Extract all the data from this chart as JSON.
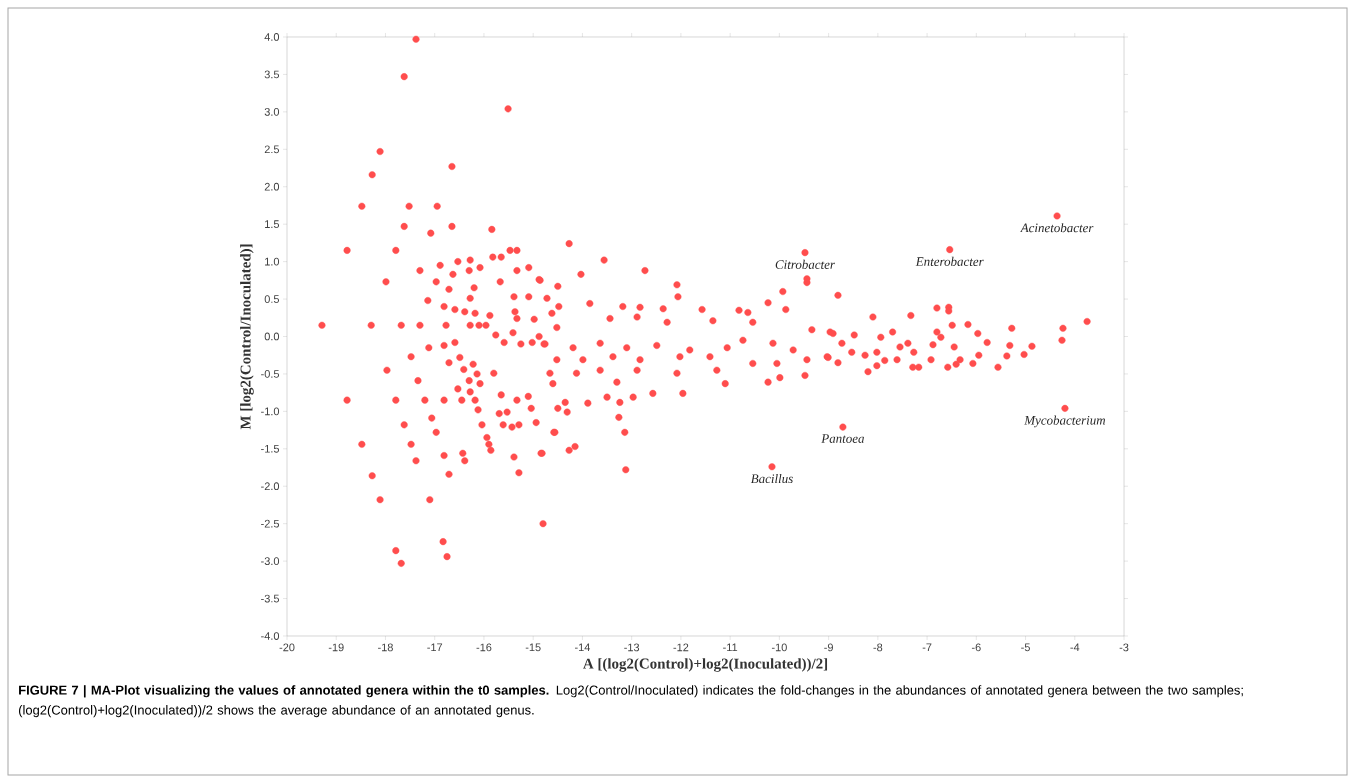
{
  "chart_data": {
    "type": "scatter",
    "xlabel": "A [(log2(Control)+log2(Inoculated))/2]",
    "ylabel": "M [log2(Control/Inoculated)]",
    "color": "#ff4d4d",
    "marker": "circle",
    "grid": false,
    "legend": false,
    "xlim": [
      -20,
      -3
    ],
    "ylim": [
      -4,
      4
    ],
    "xticks": [
      -20,
      -19,
      -18,
      -17,
      -16,
      -15,
      -14,
      -13,
      -12,
      -11,
      -10,
      -9,
      -8,
      -7,
      -6,
      -5,
      -4,
      -3
    ],
    "yticks": [
      {
        "value": 4,
        "label": "4.0"
      },
      {
        "value": 3.5,
        "label": "3.5"
      },
      {
        "value": 3,
        "label": "3.0"
      },
      {
        "value": 2.5,
        "label": "2.5"
      },
      {
        "value": 2,
        "label": "2.0"
      },
      {
        "value": 1.5,
        "label": "1.5"
      },
      {
        "value": 1,
        "label": "1.0"
      },
      {
        "value": 0.5,
        "label": "0.5"
      },
      {
        "value": 0,
        "label": "0.0"
      },
      {
        "value": -0.5,
        "label": "-0.5"
      },
      {
        "value": -1,
        "label": "-1.0"
      },
      {
        "value": -1.5,
        "label": "-1.5"
      },
      {
        "value": -2,
        "label": "-2.0"
      },
      {
        "value": -2.5,
        "label": "-2.5"
      },
      {
        "value": -3,
        "label": "-3.0"
      },
      {
        "value": -3.5,
        "label": "-3.5"
      },
      {
        "value": -4,
        "label": "-4.0"
      }
    ],
    "x": [
      -19.29,
      -18.78,
      -18.78,
      -18.48,
      -18.27,
      -18.29,
      -18.48,
      -18.27,
      -18.11,
      -18.11,
      -17.99,
      -17.97,
      -17.79,
      -17.79,
      -17.79,
      -17.68,
      -17.68,
      -17.62,
      -17.38,
      -17.62,
      -17.52,
      -17.48,
      -17.62,
      -17.48,
      -17.38,
      -17.3,
      -17.3,
      -17.34,
      -17.2,
      -17.08,
      -17.14,
      -16.95,
      -16.89,
      -16.77,
      -16.81,
      -16.83,
      -16.75,
      -16.71,
      -16.65,
      -16.65,
      -17.1,
      -17.06,
      -16.97,
      -16.81,
      -15.51,
      -14.27,
      -13.56,
      -12.73,
      -9.48,
      -9.44,
      -9.44,
      -10.23,
      -9.93,
      -8.81,
      -12.08,
      -12.06,
      -14.03,
      -14.72,
      -13.85,
      -13.18,
      -12.83,
      -12.36,
      -11.57,
      -10.82,
      -10.64,
      -9.87,
      -14.52,
      -13.44,
      -12.89,
      -12.28,
      -11.35,
      -10.54,
      -9.34,
      -8.97,
      -14.76,
      -14.19,
      -13.64,
      -13.1,
      -12.49,
      -11.82,
      -11.06,
      -10.74,
      -10.13,
      -9.72,
      -9.03,
      -14.52,
      -13.99,
      -13.38,
      -12.83,
      -12.02,
      -11.41,
      -10.54,
      -10.05,
      -9.44,
      -14.66,
      -14.12,
      -13.64,
      -12.89,
      -12.08,
      -11.27,
      -9.99,
      -9.48,
      -14.6,
      -13.3,
      -12.57,
      -11.96,
      -11.1,
      -10.23,
      -13.5,
      -12.97,
      -14.35,
      -13.89,
      -13.24,
      -14.5,
      -14.31,
      -13.26,
      -14.58,
      -13.14,
      -14.82,
      -14.27,
      -14.15,
      -13.12,
      -10.15,
      -14.86,
      -4.36,
      -6.54,
      -4.2,
      -8.71,
      -8.1,
      -7.33,
      -6.8,
      -6.56,
      -6.56,
      -6.17,
      -6.49,
      -5.28,
      -3.75,
      -4.24,
      -4.26,
      -4.87,
      -5.03,
      -5.32,
      -5.38,
      -5.56,
      -5.78,
      -5.97,
      -5.95,
      -6.07,
      -6.33,
      -6.41,
      -6.58,
      -6.45,
      -6.8,
      -6.72,
      -6.88,
      -6.92,
      -7.17,
      -7.29,
      -7.27,
      -7.39,
      -7.55,
      -7.7,
      -7.94,
      -8.02,
      -8.02,
      -8.2,
      -8.26,
      -8.48,
      -8.53,
      -8.73,
      -8.91,
      -8.81,
      -9.01,
      -7.61,
      -7.86,
      -15.84,
      -15.47,
      -15.33,
      -15.65,
      -15.82,
      -16.28,
      -16.53,
      -16.08,
      -15.33,
      -15.09,
      -16.3,
      -16.63,
      -16.97,
      -15.67,
      -14.88,
      -16.2,
      -16.71,
      -15.39,
      -15.09,
      -16.28,
      -16.81,
      -14.5,
      -16.59,
      -16.39,
      -16.18,
      -15.88,
      -15.37,
      -15.33,
      -14.98,
      -14.62,
      -14.48,
      -16.28,
      -16.1,
      -15.96,
      -15.76,
      -15.41,
      -15.59,
      -14.88,
      -16.81,
      -16.59,
      -15.25,
      -15.02,
      -14.78,
      -17.12,
      -16.45,
      -16.18,
      -16.71,
      -16.49,
      -16.41,
      -16.22,
      -16.14,
      -16.3,
      -16.08,
      -16.53,
      -16.28,
      -15.8,
      -15.65,
      -15.33,
      -15.1,
      -16.12,
      -16.04,
      -15.69,
      -15.53,
      -15.61,
      -15.43,
      -15.29,
      -14.94,
      -15.04,
      -15.94,
      -15.9,
      -15.86,
      -14.56,
      -16.43,
      -16.39,
      -15.39,
      -14.84,
      -15.29,
      -14.8
    ],
    "values": [
      0.15,
      1.15,
      -0.85,
      1.74,
      2.16,
      0.15,
      -1.44,
      -1.86,
      2.47,
      -2.18,
      0.73,
      -0.45,
      1.15,
      -0.85,
      -2.86,
      -3.03,
      0.15,
      3.47,
      3.97,
      1.47,
      1.74,
      -0.27,
      -1.18,
      -1.44,
      -1.66,
      0.88,
      0.15,
      -0.59,
      -0.85,
      1.38,
      0.48,
      1.74,
      0.95,
      0.15,
      -0.85,
      -2.74,
      -2.94,
      -1.84,
      2.27,
      1.47,
      -2.18,
      -1.09,
      -1.28,
      -1.59,
      3.04,
      1.24,
      1.02,
      0.88,
      1.12,
      0.72,
      0.77,
      0.45,
      0.6,
      0.55,
      0.69,
      0.53,
      0.83,
      0.51,
      0.44,
      0.4,
      0.39,
      0.37,
      0.36,
      0.35,
      0.32,
      0.36,
      0.12,
      0.24,
      0.26,
      0.19,
      0.21,
      0.19,
      0.09,
      0.06,
      -0.1,
      -0.15,
      -0.09,
      -0.15,
      -0.12,
      -0.18,
      -0.15,
      -0.05,
      -0.09,
      -0.18,
      -0.27,
      -0.31,
      -0.31,
      -0.27,
      -0.31,
      -0.27,
      -0.27,
      -0.36,
      -0.36,
      -0.31,
      -0.49,
      -0.49,
      -0.45,
      -0.45,
      -0.49,
      -0.45,
      -0.55,
      -0.52,
      -0.63,
      -0.61,
      -0.76,
      -0.76,
      -0.63,
      -0.61,
      -0.81,
      -0.81,
      -0.88,
      -0.89,
      -0.88,
      -0.96,
      -1.01,
      -1.08,
      -1.28,
      -1.28,
      -1.56,
      -1.52,
      -1.47,
      -1.78,
      -1.74,
      0.75,
      1.61,
      1.16,
      -0.96,
      -1.21,
      0.26,
      0.28,
      0.38,
      0.39,
      0.34,
      0.16,
      0.15,
      0.11,
      0.2,
      0.11,
      -0.05,
      -0.13,
      -0.24,
      -0.12,
      -0.26,
      -0.41,
      -0.08,
      0.04,
      -0.25,
      -0.36,
      -0.31,
      -0.37,
      -0.41,
      -0.14,
      0.06,
      -0.01,
      -0.11,
      -0.31,
      -0.41,
      -0.41,
      -0.21,
      -0.09,
      -0.14,
      0.06,
      -0.01,
      -0.21,
      -0.39,
      -0.47,
      -0.25,
      0.02,
      -0.21,
      -0.09,
      0.04,
      -0.35,
      -0.28,
      -0.31,
      -0.32,
      1.43,
      1.15,
      1.15,
      1.06,
      1.06,
      1.02,
      1.0,
      0.92,
      0.88,
      0.92,
      0.88,
      0.83,
      0.73,
      0.73,
      0.76,
      0.65,
      0.63,
      0.53,
      0.53,
      0.51,
      0.4,
      0.67,
      0.36,
      0.33,
      0.31,
      0.28,
      0.33,
      0.24,
      0.23,
      0.31,
      0.4,
      0.15,
      0.15,
      0.15,
      0.02,
      0.05,
      -0.08,
      0.0,
      -0.12,
      -0.08,
      -0.1,
      -0.08,
      -0.1,
      -0.15,
      -0.85,
      -0.85,
      -0.35,
      -0.28,
      -0.44,
      -0.37,
      -0.5,
      -0.59,
      -0.63,
      -0.7,
      -0.74,
      -0.49,
      -0.78,
      -0.85,
      -0.8,
      -0.98,
      -1.18,
      -1.03,
      -1.01,
      -1.18,
      -1.21,
      -1.18,
      -1.15,
      -0.96,
      -1.35,
      -1.44,
      -1.52,
      -1.28,
      -1.56,
      -1.66,
      -1.61,
      -1.56,
      -1.82,
      -2.5
    ],
    "annotations": [
      {
        "text": "*Citrobacter*",
        "x": -9.48,
        "y": 1.12
      },
      {
        "text": "*Enterobacter*",
        "x": -6.54,
        "y": 1.16
      },
      {
        "text": "*Acinetobacter*",
        "x": -4.36,
        "y": 1.61
      },
      {
        "text": "*Mycobacterium*",
        "x": -4.2,
        "y": -0.96
      },
      {
        "text": "*Pantoea*",
        "x": -8.71,
        "y": -1.21
      },
      {
        "text": "*Bacillus*",
        "x": -10.15,
        "y": -1.74
      },
      "**FIGURE 7 | MA-Plot visualizing the values of annotated genera within the t0 samples.** Log2(Control/Inoculated) indicates the fold-changes in the abundances of annotated genera between the two samples; (log2(Control)+log2(Inoculated))/2 shows the average abundance of an annotated genus."
    ]
  }
}
